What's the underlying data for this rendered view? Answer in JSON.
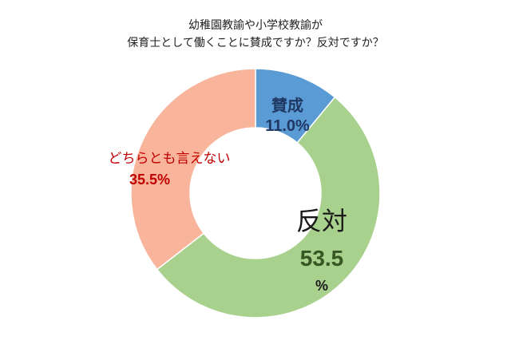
{
  "chart_data": {
    "type": "pie",
    "donut": true,
    "title_line1": "幼稚園教諭や小学校教諭が",
    "title_line2": "保育士として働くことに賛成ですか？反対ですか？",
    "start": "12 o'clock",
    "direction": "clockwise",
    "slices": [
      {
        "name": "賛成",
        "value": 11.0,
        "label": "11.0%",
        "color": "#5b9bd5",
        "label_color": "#1f3864"
      },
      {
        "name": "反対",
        "value": 53.5,
        "label_value": "53.5",
        "label_unit": "%",
        "color": "#a9d18e",
        "label_color": "#375623"
      },
      {
        "name": "どちらとも言えない",
        "value": 35.5,
        "label": "35.5%",
        "color": "#f8b59c",
        "label_color": "#c00000"
      }
    ]
  }
}
